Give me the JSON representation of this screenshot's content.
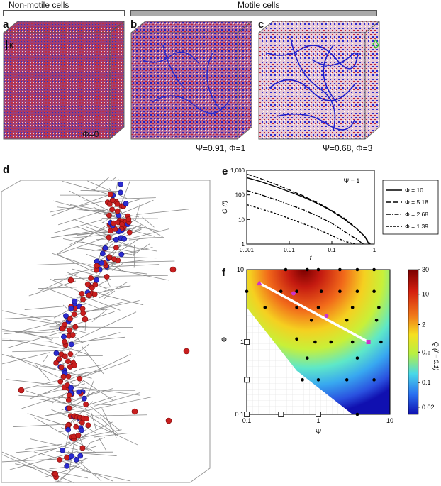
{
  "header": {
    "left": "Non-motile cells",
    "right": "Motile cells"
  },
  "panels": {
    "a": {
      "label": "a",
      "caption": "Φ=0",
      "axis_label": "κ"
    },
    "b": {
      "label": "b",
      "caption": "Ψ=0.91, Φ=1"
    },
    "c": {
      "label": "c",
      "caption": "Ψ=0.68, Φ=3"
    },
    "d": {
      "label": "d"
    },
    "e": {
      "label": "e"
    },
    "f": {
      "label": "f"
    }
  },
  "chart_data": [
    {
      "panel": "e",
      "type": "line",
      "xlabel": "f",
      "ylabel": "Q (f)",
      "annotation": "Ψ = 1",
      "xscale": "log",
      "yscale": "log",
      "xlim": [
        0.001,
        1
      ],
      "ylim": [
        1,
        1000
      ],
      "xticks": [
        "0.001",
        "0.01",
        "0.1",
        "1"
      ],
      "yticks": [
        "1",
        "10",
        "100",
        "1,000"
      ],
      "legend_position": "right",
      "series": [
        {
          "name": "Φ = 10",
          "style": "solid",
          "x": [
            0.001,
            0.002,
            0.005,
            0.01,
            0.02,
            0.05,
            0.1,
            0.2,
            0.4,
            0.6,
            0.75
          ],
          "y": [
            500,
            360,
            210,
            135,
            85,
            42,
            22,
            10,
            4,
            2,
            1
          ]
        },
        {
          "name": "Φ = 5.18",
          "style": "dash",
          "x": [
            0.001,
            0.002,
            0.005,
            0.01,
            0.02,
            0.05,
            0.1,
            0.2,
            0.4,
            0.6,
            0.8
          ],
          "y": [
            700,
            480,
            260,
            160,
            95,
            45,
            23,
            11,
            4,
            2,
            1
          ]
        },
        {
          "name": "Φ = 2.68",
          "style": "dashdot",
          "x": [
            0.001,
            0.002,
            0.005,
            0.01,
            0.02,
            0.05,
            0.1,
            0.2,
            0.4,
            0.55
          ],
          "y": [
            150,
            105,
            62,
            40,
            26,
            13,
            7,
            3.2,
            1.5,
            1
          ]
        },
        {
          "name": "Φ = 1.39",
          "style": "dot",
          "x": [
            0.001,
            0.002,
            0.005,
            0.01,
            0.02,
            0.05,
            0.1,
            0.2,
            0.35
          ],
          "y": [
            40,
            28,
            17,
            11,
            7,
            3.8,
            2.2,
            1.3,
            1
          ]
        }
      ]
    },
    {
      "panel": "f",
      "type": "heatmap",
      "xlabel": "Ψ",
      "ylabel": "Φ",
      "colorbar_label": "Q (f = 0.1)",
      "xscale": "log",
      "yscale": "log",
      "xlim": [
        0.1,
        10
      ],
      "ylim": [
        0.1,
        10
      ],
      "xticks": [
        "0.1",
        "1",
        "10"
      ],
      "yticks": [
        "0.1",
        "1",
        "10"
      ],
      "colorbar_ticks": [
        "30",
        "10",
        "2",
        "0.5",
        "0.1",
        "0.02"
      ],
      "colors": {
        "low": "#1010c0",
        "mid": "#f0f020",
        "high": "#8b0000",
        "line": "#ffffff",
        "marker": "#cc33cc"
      },
      "points": [
        {
          "x": 0.35,
          "y": 10
        },
        {
          "x": 0.7,
          "y": 10
        },
        {
          "x": 1,
          "y": 10
        },
        {
          "x": 2,
          "y": 10
        },
        {
          "x": 3.5,
          "y": 10
        },
        {
          "x": 6,
          "y": 10
        },
        {
          "x": 0.1,
          "y": 5
        },
        {
          "x": 0.3,
          "y": 5
        },
        {
          "x": 0.5,
          "y": 5
        },
        {
          "x": 1.1,
          "y": 5
        },
        {
          "x": 2,
          "y": 5
        },
        {
          "x": 3.5,
          "y": 5
        },
        {
          "x": 6,
          "y": 5
        },
        {
          "x": 0.18,
          "y": 3
        },
        {
          "x": 0.5,
          "y": 3
        },
        {
          "x": 1,
          "y": 3
        },
        {
          "x": 3,
          "y": 3
        },
        {
          "x": 7,
          "y": 3
        },
        {
          "x": 0.8,
          "y": 2
        },
        {
          "x": 1.4,
          "y": 2
        },
        {
          "x": 2.5,
          "y": 2
        },
        {
          "x": 6.5,
          "y": 2
        },
        {
          "x": 0.5,
          "y": 1.1
        },
        {
          "x": 0.9,
          "y": 1
        },
        {
          "x": 1.5,
          "y": 1
        },
        {
          "x": 3,
          "y": 1
        },
        {
          "x": 5,
          "y": 1
        },
        {
          "x": 7.5,
          "y": 1
        },
        {
          "x": 0.7,
          "y": 0.6
        },
        {
          "x": 3.5,
          "y": 0.6
        },
        {
          "x": 0.6,
          "y": 0.3
        },
        {
          "x": 1,
          "y": 0.3
        },
        {
          "x": 2.5,
          "y": 0.3
        },
        {
          "x": 6,
          "y": 0.3
        },
        {
          "x": 3.5,
          "y": 0.1
        }
      ],
      "open_squares": [
        {
          "x": 0.1,
          "y": 1
        },
        {
          "x": 0.1,
          "y": 0.3
        },
        {
          "x": 0.1,
          "y": 0.1
        },
        {
          "x": 0.3,
          "y": 0.1
        },
        {
          "x": 1,
          "y": 0.1
        }
      ],
      "trajectory": [
        {
          "x": 0.15,
          "y": 6.5,
          "marker": "triangle"
        },
        {
          "x": 0.45,
          "y": 4.7,
          "marker": "circle"
        },
        {
          "x": 1.3,
          "y": 2.3,
          "marker": "circle"
        },
        {
          "x": 5,
          "y": 1,
          "marker": "square"
        }
      ]
    }
  ]
}
